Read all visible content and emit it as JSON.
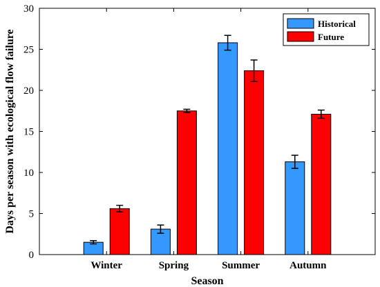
{
  "chart_data": {
    "type": "bar",
    "title": "",
    "xlabel": "Season",
    "ylabel": "Days per season with ecological flow failure",
    "categories": [
      "Winter",
      "Spring",
      "Summer",
      "Autumn"
    ],
    "ylim": [
      0,
      30
    ],
    "yticks": [
      0,
      5,
      10,
      15,
      20,
      25,
      30
    ],
    "grid": false,
    "legend_position": "top-right",
    "error_bars": true,
    "series": [
      {
        "name": "Historical",
        "color": "#3399ff",
        "values": [
          1.5,
          3.1,
          25.8,
          11.3
        ],
        "errors": [
          0.2,
          0.5,
          0.9,
          0.8
        ]
      },
      {
        "name": "Future",
        "color": "#ff0000",
        "values": [
          5.6,
          17.5,
          22.4,
          17.1
        ],
        "errors": [
          0.4,
          0.2,
          1.3,
          0.5
        ]
      }
    ]
  }
}
